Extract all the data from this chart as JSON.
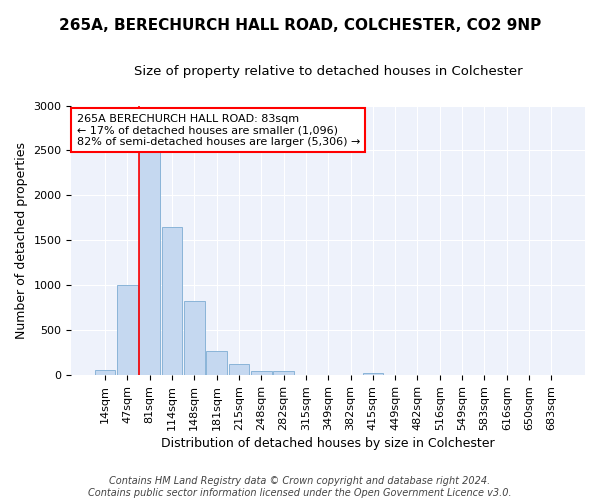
{
  "title_line1": "265A, BERECHURCH HALL ROAD, COLCHESTER, CO2 9NP",
  "title_line2": "Size of property relative to detached houses in Colchester",
  "xlabel": "Distribution of detached houses by size in Colchester",
  "ylabel": "Number of detached properties",
  "footnote": "Contains HM Land Registry data © Crown copyright and database right 2024.\nContains public sector information licensed under the Open Government Licence v3.0.",
  "bar_labels": [
    "14sqm",
    "47sqm",
    "81sqm",
    "114sqm",
    "148sqm",
    "181sqm",
    "215sqm",
    "248sqm",
    "282sqm",
    "315sqm",
    "349sqm",
    "382sqm",
    "415sqm",
    "449sqm",
    "482sqm",
    "516sqm",
    "549sqm",
    "583sqm",
    "616sqm",
    "650sqm",
    "683sqm"
  ],
  "bar_values": [
    55,
    1000,
    2480,
    1650,
    830,
    270,
    125,
    50,
    45,
    0,
    0,
    0,
    30,
    0,
    0,
    0,
    0,
    0,
    0,
    0,
    0
  ],
  "bar_color": "#c5d8f0",
  "bar_edgecolor": "#8ab4d8",
  "property_line_bar_index": 2,
  "annotation_text": "265A BERECHURCH HALL ROAD: 83sqm\n← 17% of detached houses are smaller (1,096)\n82% of semi-detached houses are larger (5,306) →",
  "ylim": [
    0,
    3000
  ],
  "yticks": [
    0,
    500,
    1000,
    1500,
    2000,
    2500,
    3000
  ],
  "background_color": "#ffffff",
  "plot_bg_color": "#eef2fb",
  "grid_color": "#ffffff",
  "title_fontsize": 11,
  "subtitle_fontsize": 9.5,
  "tick_fontsize": 8,
  "ylabel_fontsize": 9,
  "xlabel_fontsize": 9,
  "footnote_fontsize": 7
}
